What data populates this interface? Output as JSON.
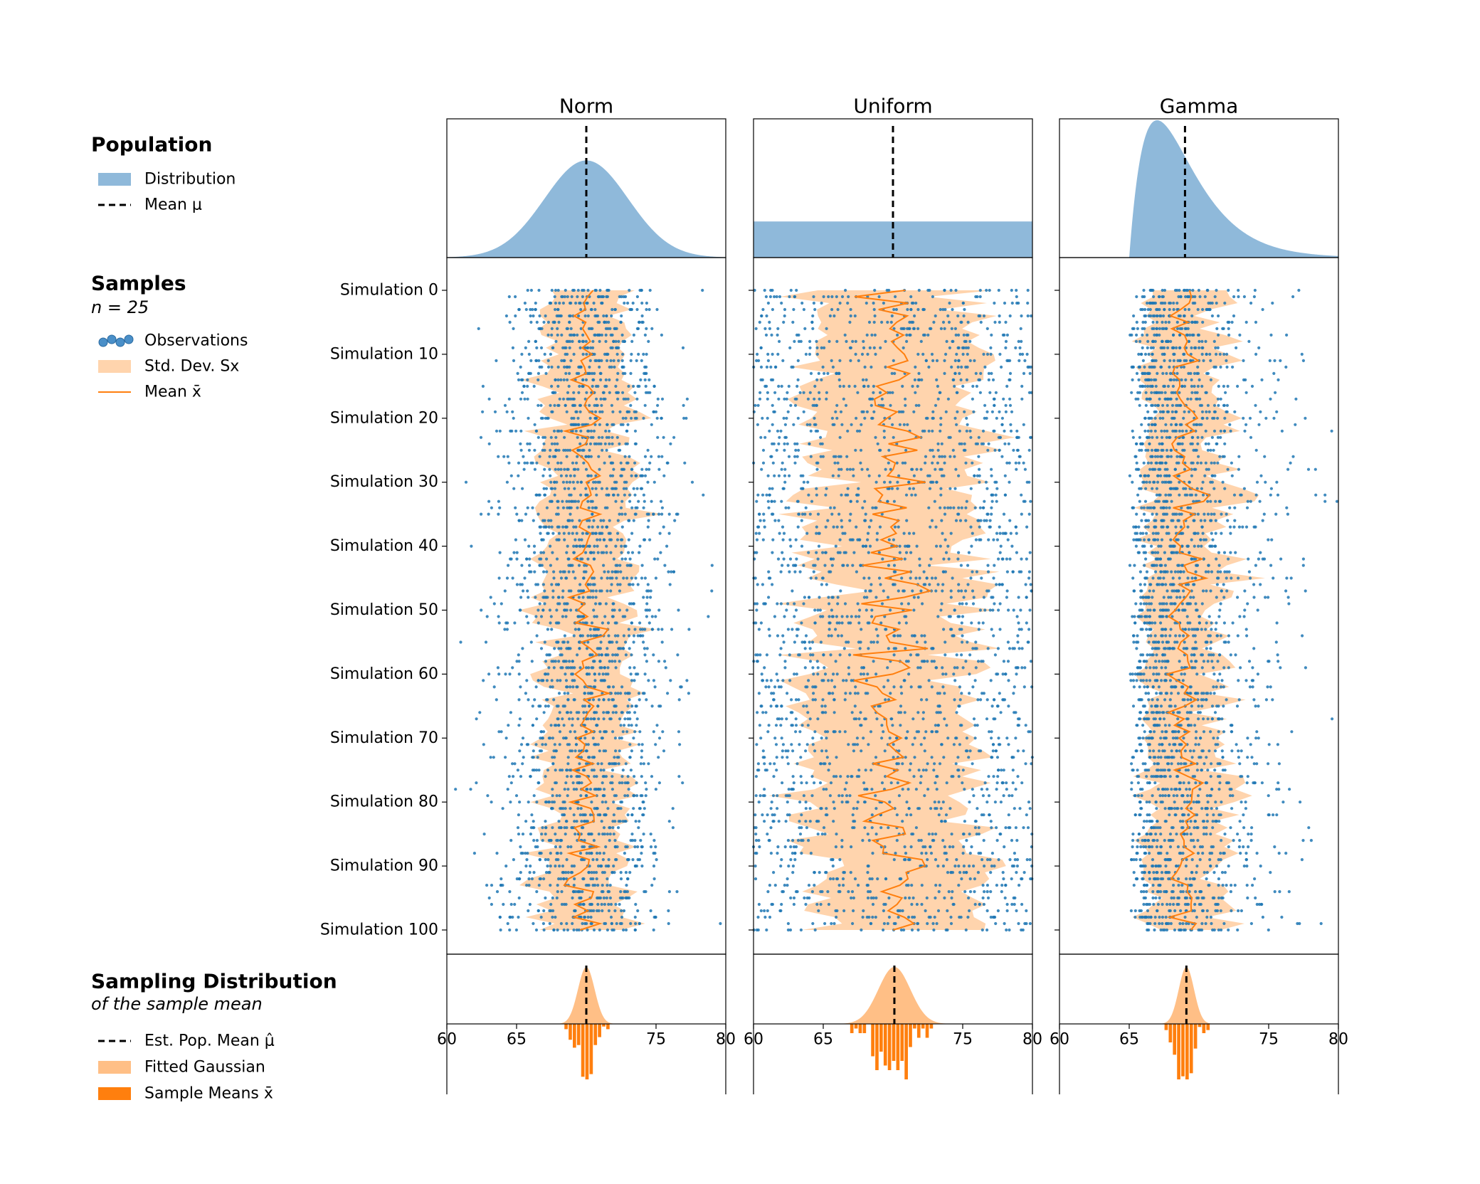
{
  "legend": {
    "population": {
      "title": "Population",
      "items": [
        "Distribution",
        "Mean μ"
      ]
    },
    "samples": {
      "title": "Samples",
      "subtitle": "n = 25",
      "items": [
        "Observations",
        "Std. Dev. Sx",
        "Mean x̄"
      ]
    },
    "sampling": {
      "title": "Sampling Distribution",
      "subtitle": "of the sample mean",
      "items": [
        "Est. Pop. Mean μ̂",
        "Fitted Gaussian",
        "Sample Means x̄"
      ]
    }
  },
  "colors": {
    "population_fill": "#8fb9da",
    "observation_dot": "#1f77b4",
    "std_band": "#ffd4ad",
    "mean_line": "#ff7f0e",
    "gaussian_fill": "#ffbf86",
    "hist_bar": "#ff7f0e",
    "mean_marker": "#000000"
  },
  "chart_data": [
    {
      "type": "area",
      "title": "Norm",
      "population": {
        "distribution": "normal",
        "mean": 70,
        "sd": 3
      },
      "samples": {
        "n": 25,
        "simulations": 101,
        "ytick_labels": [
          "Simulation 0",
          "Simulation 10",
          "Simulation 20",
          "Simulation 30",
          "Simulation 40",
          "Simulation 50",
          "Simulation 60",
          "Simulation 70",
          "Simulation 80",
          "Simulation 90",
          "Simulation 100"
        ]
      },
      "sampling_distribution": {
        "est_mean": 70,
        "fitted_sd": 0.6
      },
      "xlim": [
        60,
        80
      ],
      "xticks": [
        "60",
        "65",
        "75",
        "80"
      ]
    },
    {
      "type": "area",
      "title": "Uniform",
      "population": {
        "distribution": "uniform",
        "low": 60,
        "high": 80,
        "mean": 70
      },
      "samples": {
        "n": 25,
        "simulations": 101
      },
      "sampling_distribution": {
        "est_mean": 70.1,
        "fitted_sd": 1.15
      },
      "xlim": [
        60,
        80
      ],
      "xticks": [
        "60",
        "65",
        "75",
        "80"
      ]
    },
    {
      "type": "area",
      "title": "Gamma",
      "population": {
        "distribution": "gamma",
        "loc": 65,
        "shape": 2,
        "scale": 2,
        "mean": 69
      },
      "samples": {
        "n": 25,
        "simulations": 101
      },
      "sampling_distribution": {
        "est_mean": 69.1,
        "fitted_sd": 0.55
      },
      "xlim": [
        60,
        80
      ],
      "xticks": [
        "60",
        "65",
        "75",
        "80"
      ]
    }
  ]
}
